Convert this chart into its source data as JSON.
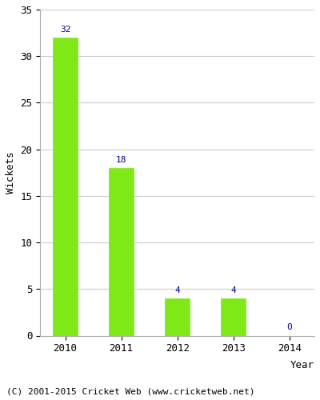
{
  "years": [
    "2010",
    "2011",
    "2012",
    "2013",
    "2014"
  ],
  "values": [
    32,
    18,
    4,
    4,
    0
  ],
  "bar_color": "#7FE817",
  "bar_edgecolor": "#7FE817",
  "label_color": "#00008B",
  "xlabel": "Year",
  "ylabel": "Wickets",
  "ylim": [
    0,
    35
  ],
  "yticks": [
    0,
    5,
    10,
    15,
    20,
    25,
    30,
    35
  ],
  "footer": "(C) 2001-2015 Cricket Web (www.cricketweb.net)",
  "grid_color": "#cccccc",
  "label_fontsize": 8,
  "axis_fontsize": 9,
  "footer_fontsize": 8,
  "bar_width": 0.45
}
